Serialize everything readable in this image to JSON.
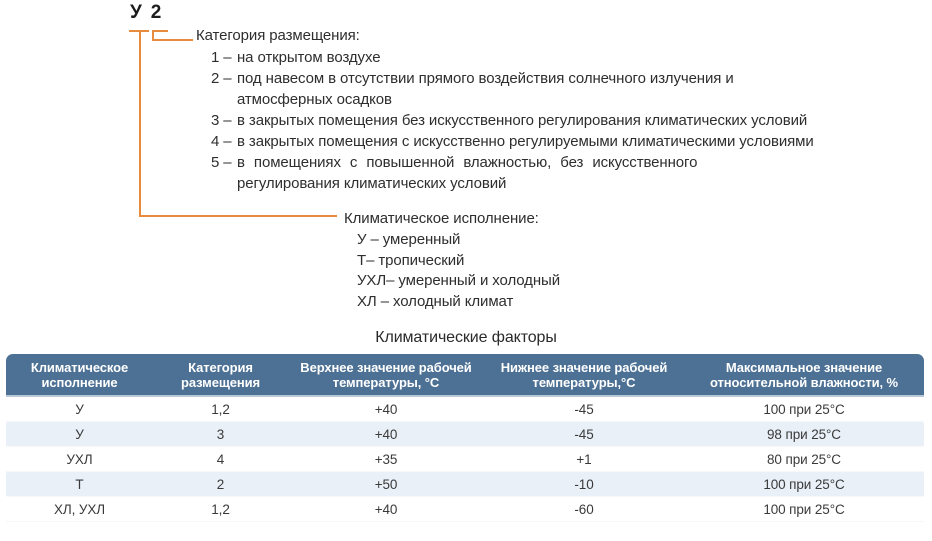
{
  "colors": {
    "accent_orange": "#e78c3e",
    "table_header_blue": "#4d7194",
    "table_stripe_blue": "#e9f0f8"
  },
  "designation": {
    "code_climate": "У",
    "code_category": "2",
    "category": {
      "label": "Категория размещения:",
      "items": [
        {
          "num": "1 –",
          "text": "на открытом воздухе"
        },
        {
          "num": "2 –",
          "text": "под навесом в отсутствии прямого воздействия солнечного излучения и\nатмосферных осадков"
        },
        {
          "num": "3 –",
          "text": "в закрытых помещения без искусственного регулирования климатических условий"
        },
        {
          "num": "4 –",
          "text": "в закрытых помещения с искусственно регулируемыми климатическими условиями"
        },
        {
          "num": "5 –",
          "text": "в помещениях с повышенной влажностью, без искусственного\nрегулирования климатических условий"
        }
      ]
    },
    "climate": {
      "label": "Климатическое исполнение:",
      "items": [
        "У – умеренный",
        "Т– тропический",
        "УХЛ– умеренный и холодный",
        "ХЛ – холодный климат"
      ]
    }
  },
  "table": {
    "title": "Климатические факторы",
    "columns": [
      "Климатическое исполнение",
      "Категория размещения",
      "Верхнее значение рабочей температуры, °С",
      "Нижнее значение рабочей температуры,°С",
      "Максимальное значение относительной влажности, %"
    ],
    "rows": [
      [
        "У",
        "1,2",
        "+40",
        "-45",
        "100 при 25°С"
      ],
      [
        "У",
        "3",
        "+40",
        "-45",
        "98 при 25°С"
      ],
      [
        "УХЛ",
        "4",
        "+35",
        "+1",
        "80 при 25°С"
      ],
      [
        "Т",
        "2",
        "+50",
        "-10",
        "100 при 25°С"
      ],
      [
        "ХЛ, УХЛ",
        "1,2",
        "+40",
        "-60",
        "100 при 25°С"
      ]
    ]
  }
}
